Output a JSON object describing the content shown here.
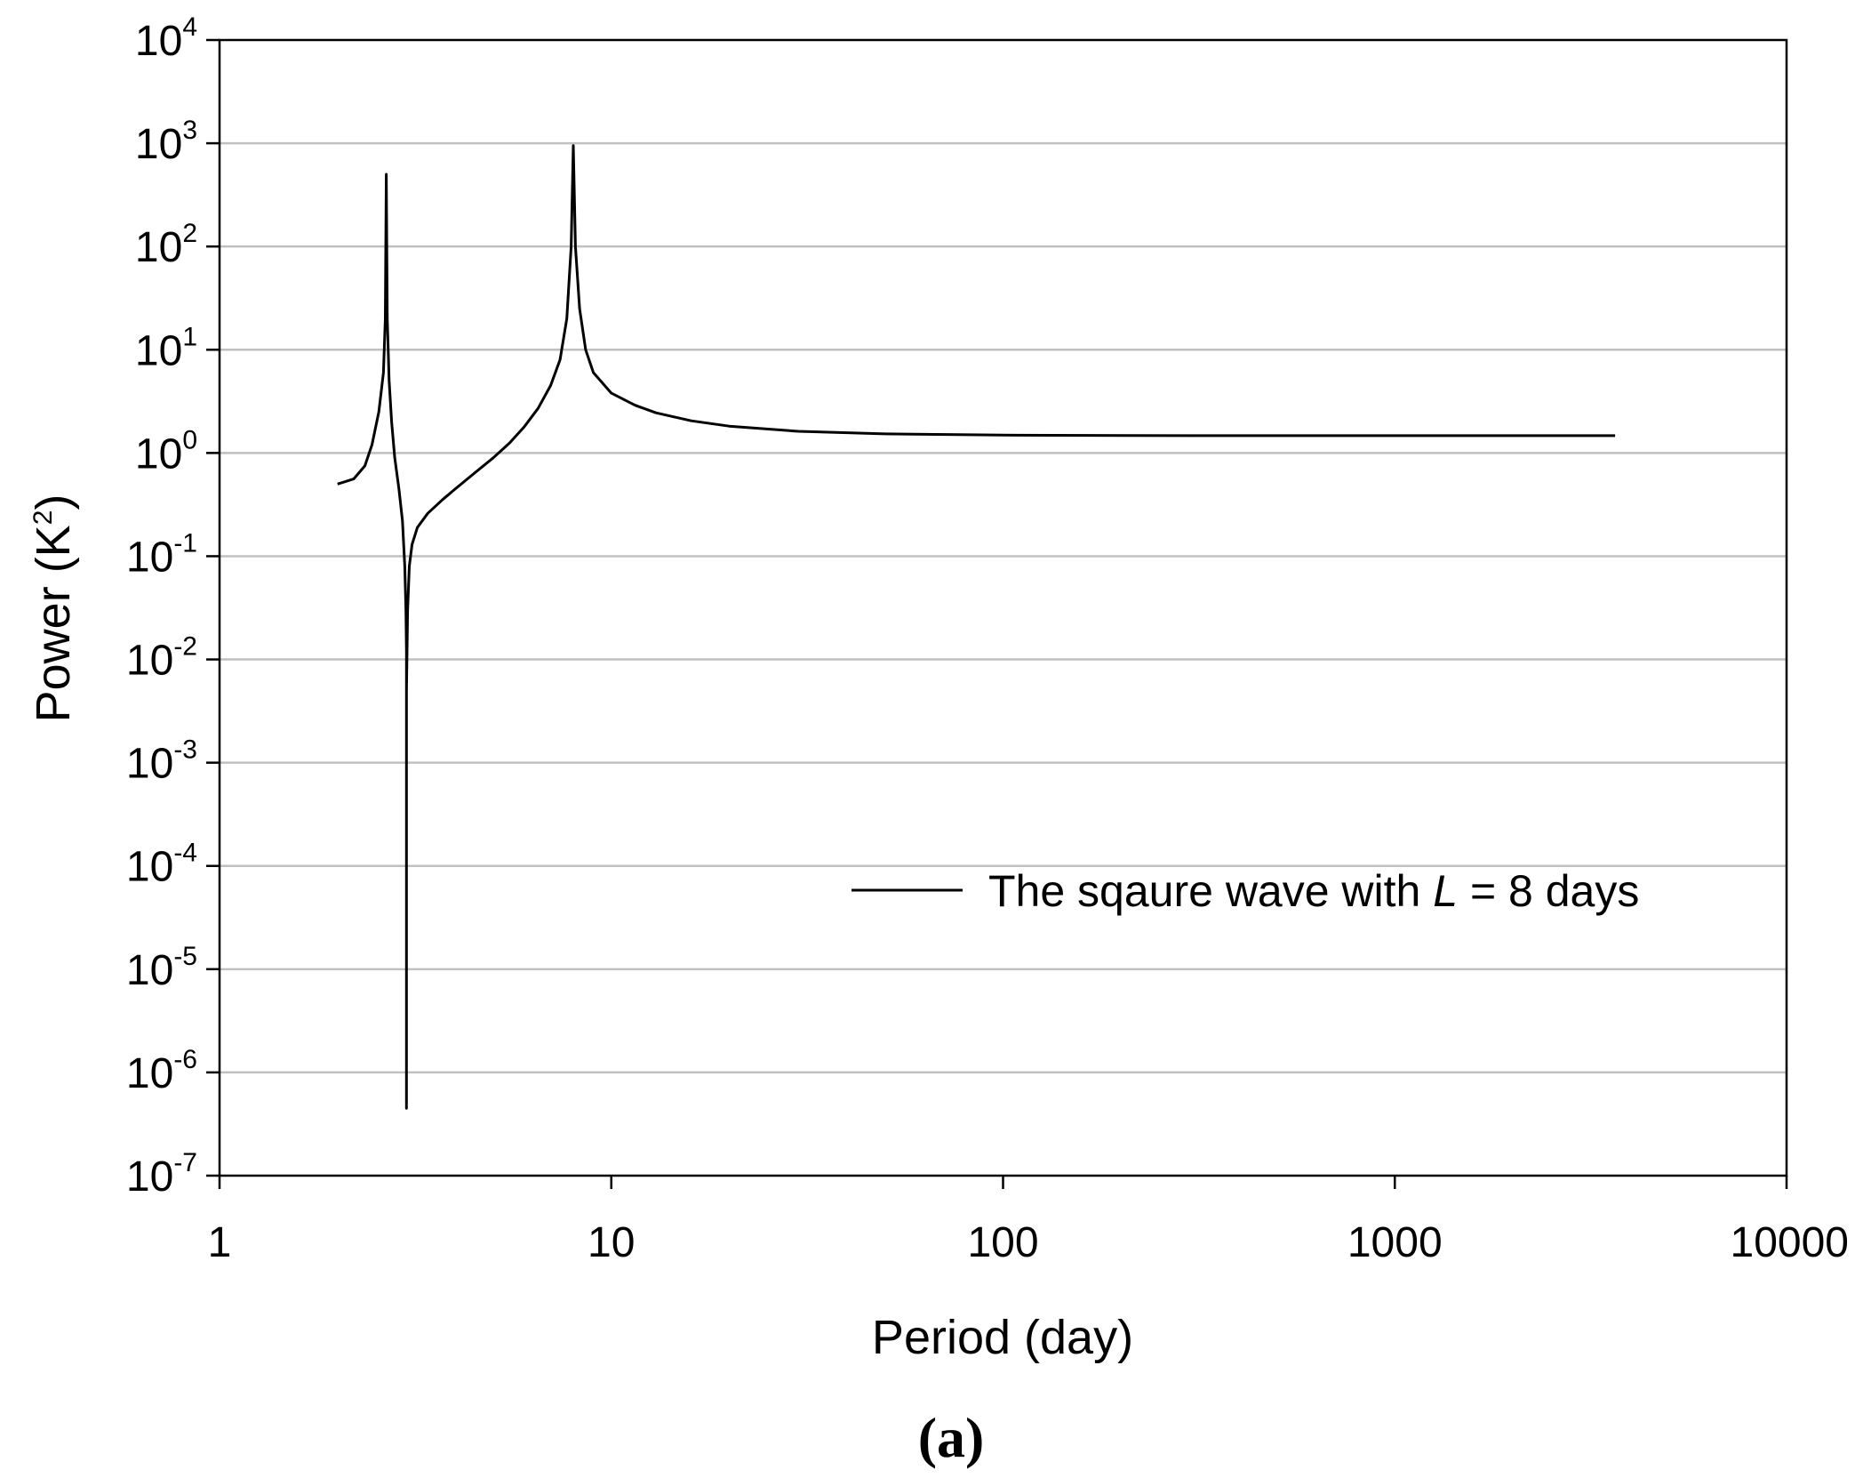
{
  "chart_data": {
    "type": "line",
    "xscale": "log",
    "yscale": "log",
    "xlim": [
      1,
      10000
    ],
    "ylim": [
      1e-07,
      10000
    ],
    "xlabel": "Period (day)",
    "ylabel_main": "Power (K",
    "ylabel_sup": "2",
    "ylabel_end": ")",
    "x_ticks": [
      "1",
      "10",
      "100",
      "1000",
      "10000"
    ],
    "y_ticks": [
      {
        "base": "10",
        "exp": "-7"
      },
      {
        "base": "10",
        "exp": "-6"
      },
      {
        "base": "10",
        "exp": "-5"
      },
      {
        "base": "10",
        "exp": "-4"
      },
      {
        "base": "10",
        "exp": "-3"
      },
      {
        "base": "10",
        "exp": "-2"
      },
      {
        "base": "10",
        "exp": "-1"
      },
      {
        "base": "10",
        "exp": "0"
      },
      {
        "base": "10",
        "exp": "1"
      },
      {
        "base": "10",
        "exp": "2"
      },
      {
        "base": "10",
        "exp": "3"
      },
      {
        "base": "10",
        "exp": "4"
      }
    ],
    "grid": "horizontal",
    "legend": {
      "position": "lower-right",
      "prefix": "The sqaure wave with ",
      "variable": "L",
      "suffix": " = 8 days"
    },
    "series": [
      {
        "color": "#000000",
        "points": [
          [
            2.0,
            0.5
          ],
          [
            2.2,
            0.56
          ],
          [
            2.35,
            0.75
          ],
          [
            2.45,
            1.2
          ],
          [
            2.55,
            2.5
          ],
          [
            2.62,
            6
          ],
          [
            2.65,
            20
          ],
          [
            2.665,
            500
          ],
          [
            2.68,
            20
          ],
          [
            2.71,
            5
          ],
          [
            2.75,
            2
          ],
          [
            2.8,
            0.9
          ],
          [
            2.87,
            0.45
          ],
          [
            2.93,
            0.22
          ],
          [
            2.97,
            0.08
          ],
          [
            2.99,
            0.03
          ],
          [
            3.0,
            0.012
          ],
          [
            3.0,
            4.5e-07
          ],
          [
            3.0,
            0.005
          ],
          [
            3.02,
            0.03
          ],
          [
            3.05,
            0.08
          ],
          [
            3.1,
            0.13
          ],
          [
            3.2,
            0.19
          ],
          [
            3.4,
            0.26
          ],
          [
            3.7,
            0.35
          ],
          [
            4.0,
            0.45
          ],
          [
            4.5,
            0.65
          ],
          [
            5.0,
            0.9
          ],
          [
            5.5,
            1.25
          ],
          [
            6.0,
            1.8
          ],
          [
            6.5,
            2.7
          ],
          [
            7.0,
            4.5
          ],
          [
            7.4,
            8
          ],
          [
            7.7,
            20
          ],
          [
            7.9,
            100
          ],
          [
            8.0,
            950
          ],
          [
            8.1,
            100
          ],
          [
            8.3,
            25
          ],
          [
            8.6,
            10
          ],
          [
            9.0,
            6
          ],
          [
            10.0,
            3.8
          ],
          [
            11.5,
            2.9
          ],
          [
            13.0,
            2.45
          ],
          [
            16.0,
            2.05
          ],
          [
            20.0,
            1.82
          ],
          [
            30.0,
            1.62
          ],
          [
            50.0,
            1.53
          ],
          [
            100.0,
            1.49
          ],
          [
            300.0,
            1.47
          ],
          [
            1000.0,
            1.47
          ],
          [
            3650.0,
            1.47
          ]
        ]
      }
    ],
    "panel_label": "(a)"
  }
}
